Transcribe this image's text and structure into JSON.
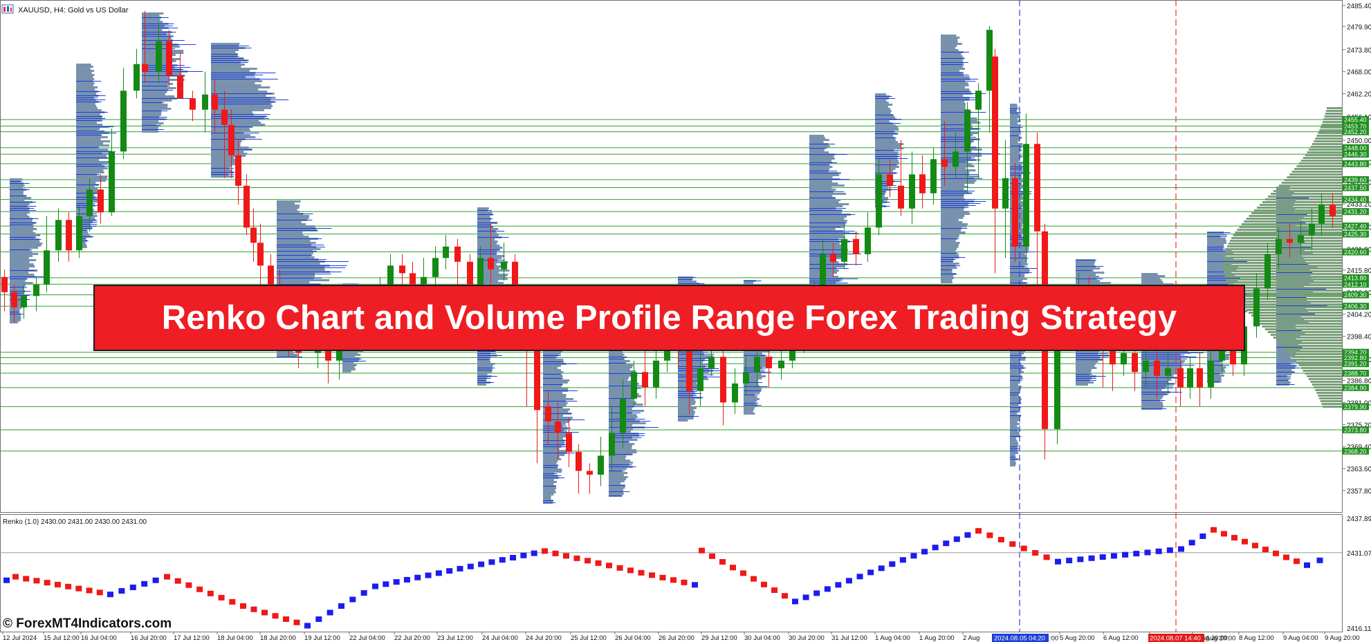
{
  "window": {
    "symbol_title": "XAUUSD, H4:  Gold vs US Dollar",
    "title_icon": "chart-window-icon"
  },
  "banner": {
    "text": "Renko Chart and Volume Profile Range Forex Trading Strategy"
  },
  "watermark": {
    "text": "© ForexMT4Indicators.com"
  },
  "main_panel": {
    "price_axis_labels": [
      "2485.40",
      "2479.90",
      "2473.80",
      "2468.00",
      "2462.20",
      "2456.10",
      "2450.00",
      "2444.20",
      "2439.00",
      "2433.20",
      "2427.10",
      "2421.30",
      "2415.80",
      "2410.00",
      "2404.20",
      "2398.40",
      "2392.30",
      "2386.80",
      "2381.00",
      "2375.20",
      "2369.40",
      "2363.60",
      "2357.80"
    ],
    "level_tags": [
      "2455.40",
      "2453.70",
      "2452.20",
      "2448.00",
      "2446.30",
      "2443.80",
      "2439.60",
      "2437.50",
      "2434.40",
      "2431.20",
      "2427.40",
      "2425.30",
      "2420.60",
      "2413.80",
      "2412.10",
      "2409.30",
      "2406.30",
      "2394.20",
      "2392.80",
      "2391.20",
      "2388.70",
      "2384.90",
      "2379.90",
      "2373.80",
      "2368.20"
    ],
    "level_color": "#2aa12a",
    "bull_color": "#138a13",
    "bear_color": "#f01818",
    "profile_color": "#7892ad",
    "profile_line_color": "#1a3ce0",
    "right_profile_color": "#7a9f7a"
  },
  "renko_panel": {
    "label": "Renko (1.0) 2430.00 2431.00 2430.00 2431.00",
    "axis_labels": [
      "2437.89",
      "2431.07",
      "2416.11"
    ],
    "up_color": "#1c1cf0",
    "down_color": "#f01818"
  },
  "time_axis": {
    "labels": [
      "12 Jul 2024",
      "15 Jul 12:00",
      "16 Jul 04:00",
      "16 Jul 20:00",
      "17 Jul 12:00",
      "18 Jul 04:00",
      "18 Jul 20:00",
      "19 Jul 12:00",
      "22 Jul 04:00",
      "22 Jul 20:00",
      "23 Jul 12:00",
      "24 Jul 04:00",
      "24 Jul 20:00",
      "25 Jul 12:00",
      "26 Jul 04:00",
      "26 Jul 20:00",
      "29 Jul 12:00",
      "30 Jul 04:00",
      "30 Jul 20:00",
      "31 Jul 12:00",
      "1 Aug 04:00",
      "1 Aug 20:00",
      "2 Aug",
      "5 Aug 20:00",
      "6 Aug 12:00",
      "7 Aug 04:00",
      "7 Aug 20:00",
      "8 Aug 12:00",
      "9 Aug 04:00",
      "9 Aug 20:00"
    ],
    "marker_blue": "2024.08.05 04:20",
    "marker_red": "2024.08.07 14:40",
    "marker_tail_blue": ":00",
    "marker_tail_red": "Aug 20:00"
  }
}
